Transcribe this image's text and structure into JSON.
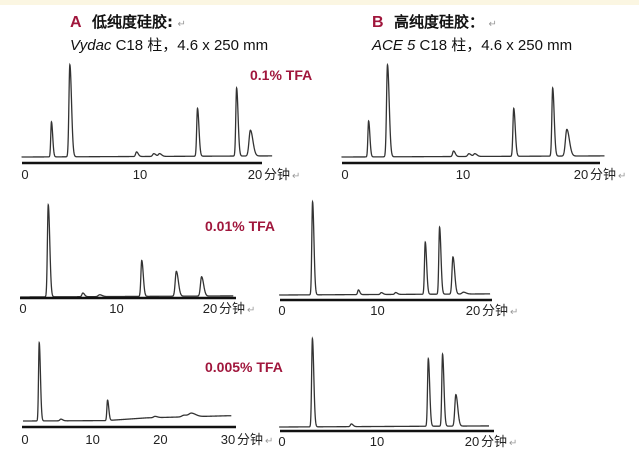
{
  "headers": {
    "A": {
      "letter": "A",
      "title": "低纯度硅胶:",
      "return_mark": "↵",
      "brand": "Vydac",
      "column": " C18 柱，4.6 x 250 mm"
    },
    "B": {
      "letter": "B",
      "title": "高纯度硅胶：",
      "return_mark": "↵",
      "brand": "ACE 5",
      "column": " C18 柱，4.6 x 250 mm"
    }
  },
  "conditions": [
    "0.1% TFA",
    "0.01% TFA",
    "0.005% TFA"
  ],
  "colors": {
    "accent": "#a0163c",
    "trace": "#333333",
    "axis": "#111111"
  },
  "chart_data": [
    {
      "type": "line",
      "panel": "A",
      "condition": "0.1% TFA",
      "xlabel": "分钟",
      "return_mark": "↵",
      "xlim": [
        0,
        20
      ],
      "ylim": [
        0,
        100
      ],
      "xticks": [
        "0",
        "10",
        "20"
      ],
      "grid": false,
      "peaks": [
        {
          "t": 2.3,
          "h": 38,
          "w": 0.06
        },
        {
          "t": 3.9,
          "h": 100,
          "w": 0.08
        },
        {
          "t": 9.7,
          "h": 5,
          "w": 0.08
        },
        {
          "t": 11.2,
          "h": 3,
          "w": 0.1
        },
        {
          "t": 11.7,
          "h": 3,
          "w": 0.1
        },
        {
          "t": 15.0,
          "h": 52,
          "w": 0.07
        },
        {
          "t": 18.4,
          "h": 74,
          "w": 0.07
        },
        {
          "t": 19.6,
          "h": 28,
          "w": 0.12
        }
      ]
    },
    {
      "type": "line",
      "panel": "B",
      "condition": "0.1% TFA",
      "xlabel": "分钟",
      "return_mark": "↵",
      "xlim": [
        0,
        20
      ],
      "ylim": [
        0,
        100
      ],
      "xticks": [
        "0",
        "10",
        "20"
      ],
      "grid": false,
      "peaks": [
        {
          "t": 2.0,
          "h": 39,
          "w": 0.06
        },
        {
          "t": 3.6,
          "h": 100,
          "w": 0.08
        },
        {
          "t": 9.2,
          "h": 6,
          "w": 0.08
        },
        {
          "t": 10.5,
          "h": 3,
          "w": 0.1
        },
        {
          "t": 11.0,
          "h": 3,
          "w": 0.1
        },
        {
          "t": 14.3,
          "h": 52,
          "w": 0.07
        },
        {
          "t": 17.6,
          "h": 74,
          "w": 0.07
        },
        {
          "t": 18.8,
          "h": 29,
          "w": 0.12
        }
      ]
    },
    {
      "type": "line",
      "panel": "A",
      "condition": "0.01% TFA",
      "xlabel": "分钟",
      "return_mark": "↵",
      "xlim": [
        0,
        20
      ],
      "ylim": [
        0,
        100
      ],
      "xticks": [
        "0",
        "10",
        "20"
      ],
      "grid": false,
      "peaks": [
        {
          "t": 2.7,
          "h": 100,
          "w": 0.09
        },
        {
          "t": 6.4,
          "h": 4,
          "w": 0.1
        },
        {
          "t": 8.2,
          "h": 2,
          "w": 0.15
        },
        {
          "t": 12.7,
          "h": 39,
          "w": 0.09
        },
        {
          "t": 16.4,
          "h": 27,
          "w": 0.12
        },
        {
          "t": 19.1,
          "h": 21,
          "w": 0.12
        }
      ]
    },
    {
      "type": "line",
      "panel": "B",
      "condition": "0.01% TFA",
      "xlabel": "分钟",
      "return_mark": "↵",
      "xlim": [
        0,
        20
      ],
      "ylim": [
        0,
        100
      ],
      "xticks": [
        "0",
        "10",
        "20"
      ],
      "grid": false,
      "peaks": [
        {
          "t": 3.2,
          "h": 100,
          "w": 0.08
        },
        {
          "t": 8.0,
          "h": 5,
          "w": 0.08
        },
        {
          "t": 10.4,
          "h": 2,
          "w": 0.1
        },
        {
          "t": 11.9,
          "h": 2,
          "w": 0.1
        },
        {
          "t": 15.0,
          "h": 56,
          "w": 0.08
        },
        {
          "t": 16.5,
          "h": 72,
          "w": 0.08
        },
        {
          "t": 17.9,
          "h": 40,
          "w": 0.1
        },
        {
          "t": 19.0,
          "h": 2,
          "w": 0.15
        }
      ]
    },
    {
      "type": "line",
      "panel": "A",
      "condition": "0.005% TFA",
      "xlabel": "分钟",
      "return_mark": "↵",
      "xlim": [
        0,
        30
      ],
      "ylim": [
        0,
        100
      ],
      "xticks": [
        "0",
        "10",
        "20",
        "30"
      ],
      "grid": false,
      "baseline_drift": [
        [
          0,
          0
        ],
        [
          12,
          0
        ],
        [
          18,
          3
        ],
        [
          30,
          5
        ]
      ],
      "peaks": [
        {
          "t": 2.1,
          "h": 92,
          "w": 0.1
        },
        {
          "t": 5.3,
          "h": 2,
          "w": 0.15
        },
        {
          "t": 12.2,
          "h": 24,
          "w": 0.1
        },
        {
          "t": 19.2,
          "h": 1.5,
          "w": 0.2
        },
        {
          "t": 23.5,
          "h": 2,
          "w": 0.3
        },
        {
          "t": 24.6,
          "h": 4,
          "w": 0.35
        }
      ]
    },
    {
      "type": "line",
      "panel": "B",
      "condition": "0.005% TFA",
      "xlabel": "分钟",
      "return_mark": "↵",
      "xlim": [
        0,
        20
      ],
      "ylim": [
        0,
        100
      ],
      "xticks": [
        "0",
        "10",
        "20"
      ],
      "grid": false,
      "peaks": [
        {
          "t": 3.2,
          "h": 98,
          "w": 0.08
        },
        {
          "t": 7.3,
          "h": 3,
          "w": 0.1
        },
        {
          "t": 15.4,
          "h": 75,
          "w": 0.08
        },
        {
          "t": 16.9,
          "h": 80,
          "w": 0.08
        },
        {
          "t": 18.3,
          "h": 35,
          "w": 0.11
        }
      ]
    }
  ]
}
